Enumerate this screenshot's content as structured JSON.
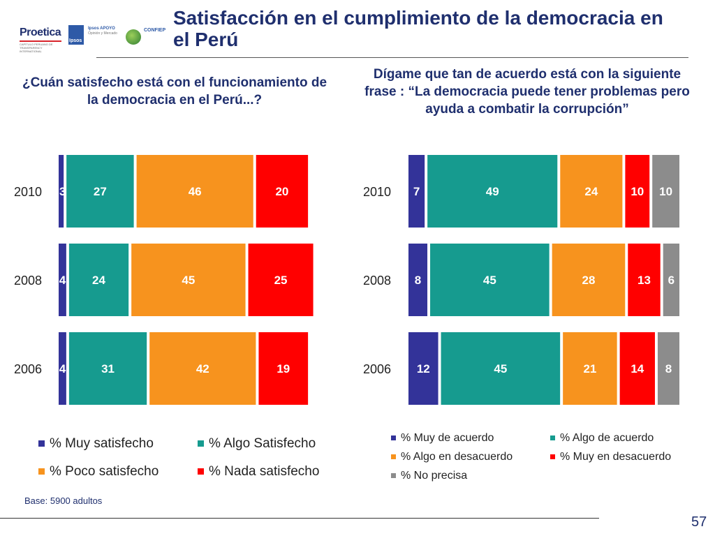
{
  "logos": {
    "proetica": "Proetica",
    "proetica_sub": "CAPÍTULO PERUANO DE TRANSPARENCY INTERNATIONAL",
    "ipsos": "Ipsos",
    "apoyo": "Ipsos APOYO",
    "apoyo_sub": "Opinión y Mercado",
    "confiep": "CONFIEP"
  },
  "title": "Satisfacción en el cumplimiento de la democracia en el Perú",
  "base_note": "Base: 5900 adultos",
  "page_number": "57",
  "colors": {
    "title": "#1f2f6e",
    "muy": "#333399",
    "algo": "#169b8f",
    "poco": "#f7931e",
    "nada": "#ff0000",
    "noprecisa": "#8c8c8c"
  },
  "chart_data": [
    {
      "type": "bar",
      "orientation": "horizontal-stacked",
      "title": "¿Cuán satisfecho está con el funcionamiento de la democracia en el Perú...?",
      "categories": [
        "2010",
        "2008",
        "2006"
      ],
      "series": [
        {
          "name": "% Muy satisfecho",
          "color": "#333399",
          "values": [
            3,
            4,
            4
          ]
        },
        {
          "name": "% Algo Satisfecho",
          "color": "#169b8f",
          "values": [
            27,
            24,
            31
          ]
        },
        {
          "name": "% Poco satisfecho",
          "color": "#f7931e",
          "values": [
            46,
            45,
            42
          ]
        },
        {
          "name": "% Nada satisfecho",
          "color": "#ff0000",
          "values": [
            20,
            25,
            19
          ]
        }
      ],
      "xlim": [
        0,
        100
      ],
      "legend": "bottom"
    },
    {
      "type": "bar",
      "orientation": "horizontal-stacked",
      "title": "Dígame que tan de acuerdo está con la siguiente frase : “La democracia puede tener problemas pero ayuda a combatir la corrupción”",
      "categories": [
        "2010",
        "2008",
        "2006"
      ],
      "series": [
        {
          "name": "% Muy de acuerdo",
          "color": "#333399",
          "values": [
            7,
            8,
            12
          ]
        },
        {
          "name": "% Algo de acuerdo",
          "color": "#169b8f",
          "values": [
            49,
            45,
            45
          ]
        },
        {
          "name": "% Algo en desacuerdo",
          "color": "#f7931e",
          "values": [
            24,
            28,
            21
          ]
        },
        {
          "name": "% Muy en desacuerdo",
          "color": "#ff0000",
          "values": [
            10,
            13,
            14
          ]
        },
        {
          "name": "% No precisa",
          "color": "#8c8c8c",
          "values": [
            10,
            6,
            8
          ]
        }
      ],
      "xlim": [
        0,
        100
      ],
      "legend": "bottom"
    }
  ]
}
